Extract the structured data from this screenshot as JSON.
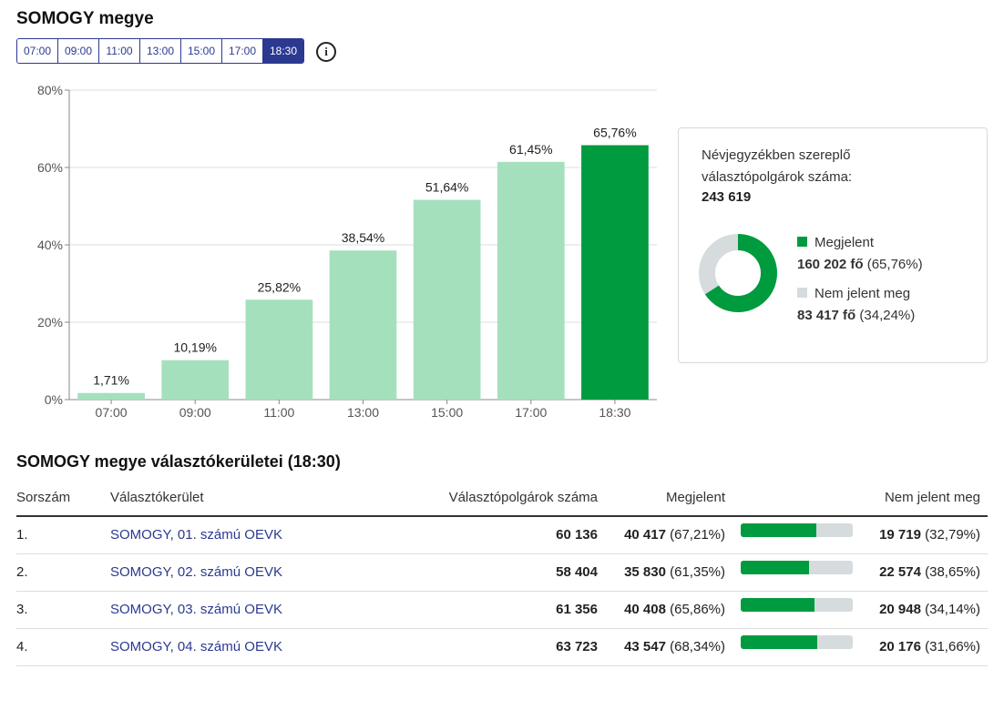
{
  "title": "SOMOGY megye",
  "tabs": [
    "07:00",
    "09:00",
    "11:00",
    "13:00",
    "15:00",
    "17:00",
    "18:30"
  ],
  "active_tab": "18:30",
  "info_glyph": "i",
  "chart_data": {
    "type": "bar",
    "categories": [
      "07:00",
      "09:00",
      "11:00",
      "13:00",
      "15:00",
      "17:00",
      "18:30"
    ],
    "values": [
      1.71,
      10.19,
      25.82,
      38.54,
      51.64,
      61.45,
      65.76
    ],
    "value_labels": [
      "1,71%",
      "10,19%",
      "25,82%",
      "38,54%",
      "51,64%",
      "61,45%",
      "65,76%"
    ],
    "ylim": [
      0,
      80
    ],
    "yticks": [
      0,
      20,
      40,
      60,
      80
    ],
    "ytick_labels": [
      "0%",
      "20%",
      "40%",
      "60%",
      "80%"
    ],
    "grid": true,
    "colors": {
      "bar": "#a5e0bd",
      "highlight": "#009b3e"
    }
  },
  "summary": {
    "label": "Névjegyzékben szereplő választópolgárok száma:",
    "total": "243 619",
    "present_pct": 65.76,
    "legend": [
      {
        "name": "Megjelent",
        "value": "160 202 fő",
        "pct": "(65,76%)",
        "color": "#009b3e"
      },
      {
        "name": "Nem jelent meg",
        "value": "83 417 fő",
        "pct": "(34,24%)",
        "color": "#d6dbdd"
      }
    ]
  },
  "table": {
    "title": "SOMOGY megye választókerületei (18:30)",
    "headers": {
      "idx": "Sorszám",
      "name": "Választókerület",
      "voters": "Választópolgárok száma",
      "turnout": "Megjelent",
      "absent": "Nem jelent meg"
    },
    "rows": [
      {
        "idx": "1.",
        "name": "SOMOGY, 01. számú OEVK",
        "voters": "60 136",
        "turnout": "40 417",
        "turnout_pct": "(67,21%)",
        "pct": 67.21,
        "absent": "19 719",
        "absent_pct": "(32,79%)"
      },
      {
        "idx": "2.",
        "name": "SOMOGY, 02. számú OEVK",
        "voters": "58 404",
        "turnout": "35 830",
        "turnout_pct": "(61,35%)",
        "pct": 61.35,
        "absent": "22 574",
        "absent_pct": "(38,65%)"
      },
      {
        "idx": "3.",
        "name": "SOMOGY, 03. számú OEVK",
        "voters": "61 356",
        "turnout": "40 408",
        "turnout_pct": "(65,86%)",
        "pct": 65.86,
        "absent": "20 948",
        "absent_pct": "(34,14%)"
      },
      {
        "idx": "4.",
        "name": "SOMOGY, 04. számú OEVK",
        "voters": "63 723",
        "turnout": "43 547",
        "turnout_pct": "(68,34%)",
        "pct": 68.34,
        "absent": "20 176",
        "absent_pct": "(31,66%)"
      }
    ]
  }
}
